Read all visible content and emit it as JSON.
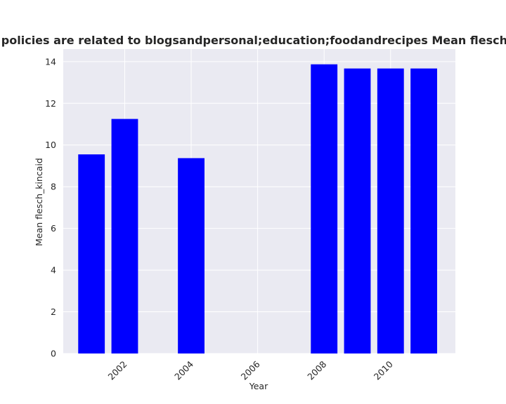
{
  "chart_data": {
    "type": "bar",
    "title": "Mean flesch_kincaid in privacy policies are related to blogsandpersonal;education;foodandrecipes Mean flesch_kincaid in privacy policies are",
    "xlabel": "Year",
    "ylabel": "Mean flesch_kincaid",
    "x": [
      2001,
      2002,
      2004,
      2008,
      2009,
      2010,
      2011
    ],
    "values": [
      9.55,
      11.25,
      9.37,
      13.87,
      13.67,
      13.67,
      13.67
    ],
    "xlim": [
      2000.15,
      2011.95
    ],
    "ylim": [
      0,
      14.6
    ],
    "xticks": [
      2002,
      2004,
      2006,
      2008,
      2010
    ],
    "xtick_labels": [
      "2002",
      "2004",
      "2006",
      "2008",
      "2010"
    ],
    "yticks": [
      0,
      2,
      4,
      6,
      8,
      10,
      12,
      14
    ],
    "ytick_labels": [
      "0",
      "2",
      "4",
      "6",
      "8",
      "10",
      "12",
      "14"
    ],
    "bar_color": "#0000ff",
    "background_color": "#eaeaf2",
    "grid": true
  }
}
